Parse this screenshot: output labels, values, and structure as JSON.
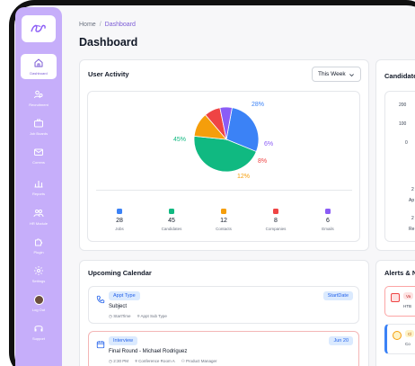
{
  "sidebar": {
    "items": [
      {
        "label": "Dashboard",
        "icon": "home-icon"
      },
      {
        "label": "Recruitment",
        "icon": "users-icon"
      },
      {
        "label": "Job Boards",
        "icon": "briefcase-icon"
      },
      {
        "label": "Comms",
        "icon": "mail-icon"
      },
      {
        "label": "Reports",
        "icon": "bar-chart-icon"
      },
      {
        "label": "HR Module",
        "icon": "people-icon"
      },
      {
        "label": "Plugin",
        "icon": "puzzle-icon"
      },
      {
        "label": "Settings",
        "icon": "gear-icon"
      },
      {
        "label": "Log Out",
        "icon": "avatar"
      },
      {
        "label": "Support",
        "icon": "headset-icon"
      }
    ]
  },
  "breadcrumb": {
    "home": "Home",
    "separator": "/",
    "current": "Dashboard"
  },
  "page_title": "Dashboard",
  "user_activity": {
    "title": "User Activity",
    "period": "This Week",
    "legend": [
      {
        "label": "Jobs",
        "count": "28",
        "color": "#3b82f6"
      },
      {
        "label": "Candidates",
        "count": "45",
        "color": "#10b981"
      },
      {
        "label": "Contacts",
        "count": "12",
        "color": "#f59e0b"
      },
      {
        "label": "Companies",
        "count": "8",
        "color": "#ef4444"
      },
      {
        "label": "Emails",
        "count": "6",
        "color": "#8b5cf6"
      }
    ],
    "percent_labels": {
      "jobs": "28%",
      "candidates": "45%",
      "contacts": "12%",
      "companies": "8%",
      "emails": "6%"
    }
  },
  "chart_data": {
    "type": "pie",
    "categories": [
      "Jobs",
      "Candidates",
      "Contacts",
      "Companies",
      "Emails"
    ],
    "values": [
      28,
      45,
      12,
      8,
      6
    ],
    "colors": [
      "#3b82f6",
      "#10b981",
      "#f59e0b",
      "#ef4444",
      "#8b5cf6"
    ]
  },
  "candidates_card": {
    "title": "Candidate",
    "axis_values": [
      "200",
      "100",
      "0"
    ],
    "side_labels": [
      "2",
      "Ap",
      "2",
      "Re"
    ]
  },
  "calendar": {
    "title": "Upcoming Calendar",
    "events": [
      {
        "type": "Appt Type",
        "date": "StartDate",
        "subject": "Subject",
        "time": "StartTime",
        "detail": "Appt Sub Type",
        "role": ""
      },
      {
        "type": "Interview",
        "date": "Jun 20",
        "subject": "Final Round - Michael Rodriguez",
        "time": "2:30 PM",
        "detail": "Conference Room A",
        "role": "Product Manager"
      }
    ]
  },
  "alerts": {
    "title": "Alerts & N",
    "items": [
      {
        "tag": "Va",
        "text": "HTB",
        "color": "#ef4444"
      },
      {
        "tag": "Cl",
        "text": "Co",
        "color": "#f59e0b"
      }
    ]
  }
}
